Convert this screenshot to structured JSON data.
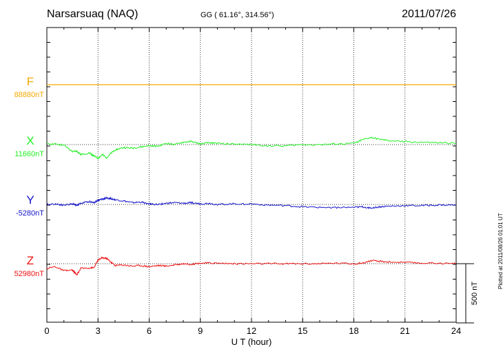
{
  "header": {
    "station": "Narsarsuaq (NAQ)",
    "coords": "GG ( 61.16°, 314.56°)",
    "date": "2011/07/26"
  },
  "footer": {
    "plotted": "Plotted at 2011/08/26 01:01 UT",
    "scale_label": "500 nT"
  },
  "chart_data": {
    "type": "line",
    "xlabel": "U T (hour)",
    "xlim": [
      0,
      24
    ],
    "xticks": [
      0,
      3,
      6,
      9,
      12,
      15,
      18,
      21,
      24
    ],
    "grid": "dotted vertical lines every 3 hours",
    "scale_bar_nT": 500,
    "x": [
      0,
      0.5,
      1,
      1.5,
      1.75,
      2,
      2.5,
      2.75,
      3,
      3.25,
      3.5,
      3.75,
      4,
      4.5,
      5,
      5.5,
      6,
      6.5,
      7,
      7.5,
      8,
      8.5,
      9,
      9.5,
      10,
      11,
      12,
      13,
      14,
      15,
      16,
      17,
      18,
      18.5,
      19,
      19.5,
      20,
      21,
      22,
      23,
      24
    ],
    "series": [
      {
        "name": "F",
        "baseline_label": "88880nT",
        "color": "#f5a800",
        "values": [
          0,
          0,
          0,
          0,
          0,
          0,
          0,
          0,
          0,
          0,
          0,
          0,
          0,
          0,
          0,
          0,
          0,
          0,
          0,
          0,
          0,
          0,
          0,
          0,
          0,
          0,
          0,
          0,
          0,
          0,
          0,
          0,
          0,
          0,
          0,
          0,
          0,
          0,
          0,
          0,
          0
        ]
      },
      {
        "name": "X",
        "baseline_label": "11660nT",
        "color": "#22ee22",
        "values": [
          5,
          5,
          -5,
          -60,
          -55,
          -85,
          -70,
          -95,
          -115,
          -85,
          -110,
          -75,
          -45,
          -25,
          -30,
          -20,
          -10,
          -15,
          10,
          0,
          20,
          25,
          5,
          15,
          10,
          5,
          0,
          -10,
          -10,
          0,
          0,
          5,
          10,
          40,
          60,
          45,
          35,
          25,
          20,
          15,
          10
        ]
      },
      {
        "name": "Y",
        "baseline_label": "-5280nT",
        "color": "#1111cc",
        "values": [
          0,
          5,
          -5,
          5,
          -5,
          10,
          25,
          15,
          35,
          45,
          55,
          50,
          40,
          30,
          15,
          20,
          5,
          0,
          10,
          15,
          10,
          15,
          5,
          10,
          0,
          5,
          5,
          -5,
          -10,
          -20,
          -25,
          -25,
          -25,
          -20,
          -30,
          -20,
          -15,
          -10,
          -10,
          -5,
          -5
        ]
      },
      {
        "name": "Z",
        "baseline_label": "52980nT",
        "color": "#ee1111",
        "values": [
          -40,
          -25,
          -60,
          -55,
          -95,
          -40,
          -35,
          -35,
          30,
          50,
          45,
          15,
          -15,
          -10,
          -20,
          -15,
          -25,
          -15,
          -20,
          -10,
          0,
          -5,
          5,
          5,
          5,
          0,
          0,
          0,
          0,
          0,
          0,
          5,
          0,
          5,
          25,
          20,
          15,
          10,
          5,
          5,
          0
        ]
      }
    ]
  }
}
